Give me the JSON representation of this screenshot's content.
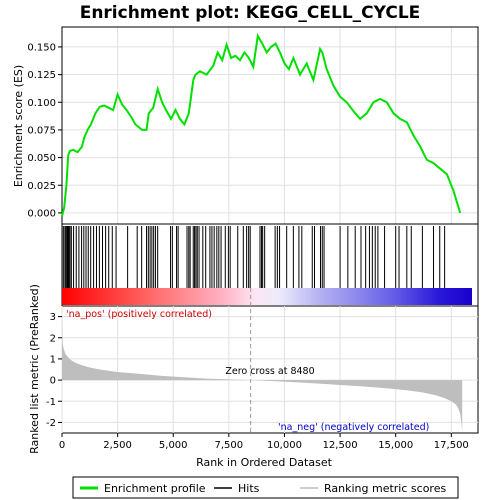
{
  "chart_data": [
    {
      "panel": "enrichment",
      "type": "line",
      "title": "Enrichment plot: KEGG_CELL_CYCLE",
      "ylabel": "Enrichment score (ES)",
      "xlim": [
        0,
        18700
      ],
      "ylim": [
        -0.01,
        0.168
      ],
      "yticks": [
        "0.000",
        "0.025",
        "0.050",
        "0.075",
        "0.100",
        "0.125",
        "0.150"
      ],
      "ytick_values": [
        0,
        0.025,
        0.05,
        0.075,
        0.1,
        0.125,
        0.15
      ],
      "grid": true,
      "series": [
        {
          "name": "Enrichment profile",
          "color": "#00e000",
          "x": [
            0,
            100,
            200,
            280,
            350,
            500,
            700,
            900,
            1000,
            1150,
            1300,
            1500,
            1700,
            1900,
            2100,
            2300,
            2500,
            2700,
            2900,
            3100,
            3300,
            3600,
            3800,
            3900,
            4100,
            4300,
            4500,
            4700,
            4900,
            5100,
            5300,
            5500,
            5700,
            5900,
            6000,
            6200,
            6500,
            6800,
            7000,
            7200,
            7400,
            7600,
            7800,
            8000,
            8200,
            8400,
            8600,
            8800,
            9000,
            9200,
            9400,
            9600,
            9800,
            10000,
            10200,
            10400,
            10700,
            11000,
            11300,
            11600,
            11700,
            11900,
            12200,
            12500,
            12800,
            13100,
            13400,
            13700,
            14000,
            14300,
            14600,
            14900,
            15200,
            15500,
            15800,
            16100,
            16400,
            16700,
            17000,
            17300,
            17600,
            17900
          ],
          "values": [
            -0.003,
            0.005,
            0.025,
            0.052,
            0.056,
            0.057,
            0.055,
            0.06,
            0.068,
            0.075,
            0.08,
            0.09,
            0.096,
            0.097,
            0.095,
            0.093,
            0.107,
            0.098,
            0.093,
            0.087,
            0.08,
            0.075,
            0.075,
            0.09,
            0.095,
            0.112,
            0.1,
            0.092,
            0.085,
            0.093,
            0.085,
            0.08,
            0.09,
            0.12,
            0.125,
            0.128,
            0.125,
            0.133,
            0.145,
            0.138,
            0.152,
            0.14,
            0.142,
            0.138,
            0.145,
            0.14,
            0.132,
            0.16,
            0.153,
            0.145,
            0.15,
            0.153,
            0.145,
            0.135,
            0.13,
            0.14,
            0.125,
            0.135,
            0.12,
            0.148,
            0.145,
            0.13,
            0.115,
            0.105,
            0.1,
            0.092,
            0.085,
            0.09,
            0.1,
            0.103,
            0.1,
            0.09,
            0.085,
            0.082,
            0.07,
            0.06,
            0.048,
            0.045,
            0.04,
            0.035,
            0.02,
            0.0
          ]
        }
      ]
    },
    {
      "panel": "hits",
      "type": "scatter",
      "series": [
        {
          "name": "Hits",
          "color": "#000000",
          "x": [
            60,
            130,
            180,
            230,
            270,
            310,
            360,
            420,
            520,
            640,
            760,
            880,
            980,
            1080,
            1180,
            1290,
            1420,
            1550,
            1680,
            1820,
            1960,
            2100,
            2260,
            2430,
            2950,
            3380,
            3580,
            3800,
            3880,
            3960,
            4040,
            4120,
            4200,
            4300,
            4880,
            4960,
            5150,
            5220,
            5620,
            5700,
            5760,
            5900,
            5960,
            6020,
            6080,
            6160,
            6330,
            6460,
            6650,
            6740,
            6840,
            6960,
            7050,
            7150,
            7340,
            7480,
            7560,
            7900,
            8150,
            8300,
            8390,
            8460,
            8900,
            8970,
            9020,
            9110,
            9580,
            9680,
            9780,
            10100,
            10400,
            10650,
            10780,
            11250,
            11350,
            11620,
            11700,
            11780,
            12500,
            12850,
            13180,
            13440,
            13650,
            13820,
            13950,
            14080,
            14200,
            14500,
            15000,
            15150,
            15500,
            15700,
            16200,
            16700,
            16980,
            17200
          ]
        }
      ]
    },
    {
      "panel": "ranked_list_metric",
      "type": "area",
      "ylabel": "Ranked list metric (PreRanked)",
      "xlabel": "Rank in Ordered Dataset",
      "xlim": [
        0,
        18700
      ],
      "ylim": [
        -2.5,
        3.5
      ],
      "xticks": [
        "0",
        "2,500",
        "5,000",
        "7,500",
        "10,000",
        "12,500",
        "15,000",
        "17,500"
      ],
      "xtick_values": [
        0,
        2500,
        5000,
        7500,
        10000,
        12500,
        15000,
        17500
      ],
      "yticks": [
        "-2",
        "-1",
        "0",
        "1",
        "2",
        "3"
      ],
      "ytick_values": [
        -2,
        -1,
        0,
        1,
        2,
        3
      ],
      "grid": true,
      "series": [
        {
          "name": "Ranking metric scores",
          "color": "#bebebe",
          "x": [
            0,
            30,
            80,
            150,
            250,
            400,
            600,
            900,
            1300,
            1800,
            2500,
            3500,
            4500,
            5500,
            6500,
            7500,
            8480,
            9500,
            10500,
            11500,
            12500,
            13500,
            14500,
            15500,
            16200,
            16800,
            17200,
            17500,
            17700,
            17800,
            17900,
            17950,
            17990
          ],
          "values": [
            3.1,
            1.7,
            1.45,
            1.25,
            1.1,
            0.95,
            0.82,
            0.7,
            0.58,
            0.48,
            0.38,
            0.29,
            0.2,
            0.13,
            0.07,
            0.03,
            0.0,
            -0.05,
            -0.1,
            -0.16,
            -0.23,
            -0.3,
            -0.38,
            -0.48,
            -0.58,
            -0.72,
            -0.85,
            -1.0,
            -1.15,
            -1.3,
            -1.6,
            -2.0,
            -2.45
          ]
        }
      ],
      "annotations": {
        "pos_label": "'na_pos' (positively correlated)",
        "neg_label": "'na_neg' (negatively correlated)",
        "zero_cross": "Zero cross at 8480",
        "zero_cross_x": 8480,
        "pos_color": "#cc0000",
        "neg_color": "#0000cc"
      }
    }
  ],
  "legend": {
    "items": [
      {
        "label": "Enrichment profile",
        "color": "#00e000"
      },
      {
        "label": "Hits",
        "color": "#000000"
      },
      {
        "label": "Ranking metric scores",
        "color": "#bebebe"
      }
    ]
  }
}
